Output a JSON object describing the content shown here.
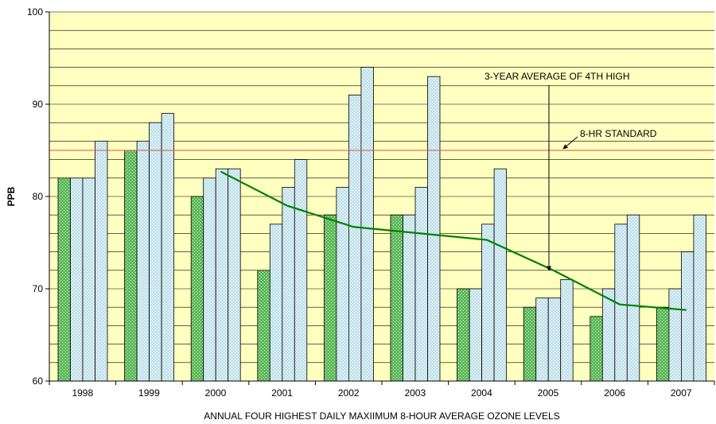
{
  "chart_data": {
    "type": "bar",
    "ylabel": "PPB",
    "xlabel": "ANNUAL FOUR HIGHEST DAILY MAXIIMUM 8-HOUR AVERAGE OZONE LEVELS",
    "ylim": [
      60,
      100
    ],
    "yticks": [
      "60",
      "70",
      "80",
      "90",
      "100"
    ],
    "categories": [
      "1998",
      "1999",
      "2000",
      "2001",
      "2002",
      "2003",
      "2004",
      "2005",
      "2006",
      "2007"
    ],
    "bars": [
      [
        82,
        82,
        82,
        86
      ],
      [
        85,
        86,
        88,
        89
      ],
      [
        80,
        82,
        83,
        83
      ],
      [
        72,
        77,
        81,
        84
      ],
      [
        78,
        81,
        91,
        94
      ],
      [
        78,
        78,
        81,
        93
      ],
      [
        70,
        70,
        77,
        83
      ],
      [
        68,
        69,
        69,
        71
      ],
      [
        67,
        70,
        77,
        78
      ],
      [
        68,
        70,
        74,
        78
      ]
    ],
    "three_year_average": {
      "label": "3-YEAR AVERAGE OF 4TH HIGH",
      "x": [
        "2000",
        "2001",
        "2002",
        "2003",
        "2004",
        "2005",
        "2006",
        "2007"
      ],
      "values": [
        82.7,
        79,
        76.7,
        76,
        75.3,
        72,
        68.3,
        67.7
      ]
    },
    "standard": {
      "label": "8-HR STANDARD",
      "value": 85
    },
    "grid": true,
    "colors": {
      "plot_background": "#ffffc0",
      "first_bar": "#5cb85c",
      "other_bars": "#c6e4ec",
      "average_line": "#008000",
      "standard_line": "#e05050",
      "gridline": "#000000"
    }
  }
}
